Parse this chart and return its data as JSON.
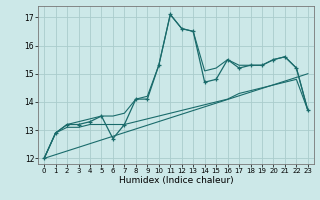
{
  "xlabel": "Humidex (Indice chaleur)",
  "ylabel": "",
  "bg_color": "#cce8e8",
  "grid_color": "#aacccc",
  "line_color": "#1a6b6b",
  "x_values": [
    0,
    1,
    2,
    3,
    4,
    5,
    6,
    7,
    8,
    9,
    10,
    11,
    12,
    13,
    14,
    15,
    16,
    17,
    18,
    19,
    20,
    21,
    22,
    23
  ],
  "main_line": [
    12.0,
    12.9,
    13.2,
    13.2,
    13.3,
    13.5,
    12.7,
    13.2,
    14.1,
    14.1,
    15.3,
    17.1,
    16.6,
    16.5,
    14.7,
    14.8,
    15.5,
    15.2,
    15.3,
    15.3,
    15.5,
    15.6,
    15.2,
    13.7
  ],
  "upper_line": [
    12.0,
    12.9,
    13.2,
    13.3,
    13.4,
    13.5,
    13.5,
    13.6,
    14.1,
    14.2,
    15.3,
    17.1,
    16.6,
    16.5,
    15.1,
    15.2,
    15.5,
    15.3,
    15.3,
    15.3,
    15.5,
    15.6,
    15.2,
    13.7
  ],
  "lower_line": [
    12.0,
    12.9,
    13.1,
    13.1,
    13.2,
    13.2,
    13.2,
    13.2,
    13.3,
    13.4,
    13.5,
    13.6,
    13.7,
    13.8,
    13.9,
    14.0,
    14.1,
    14.3,
    14.4,
    14.5,
    14.6,
    14.7,
    14.8,
    13.7
  ],
  "trend_line": [
    [
      0,
      23
    ],
    [
      12.0,
      15.0
    ]
  ],
  "ylim": [
    11.8,
    17.4
  ],
  "xlim": [
    -0.5,
    23.5
  ],
  "yticks": [
    12,
    13,
    14,
    15,
    16,
    17
  ],
  "xticks": [
    0,
    1,
    2,
    3,
    4,
    5,
    6,
    7,
    8,
    9,
    10,
    11,
    12,
    13,
    14,
    15,
    16,
    17,
    18,
    19,
    20,
    21,
    22,
    23
  ]
}
